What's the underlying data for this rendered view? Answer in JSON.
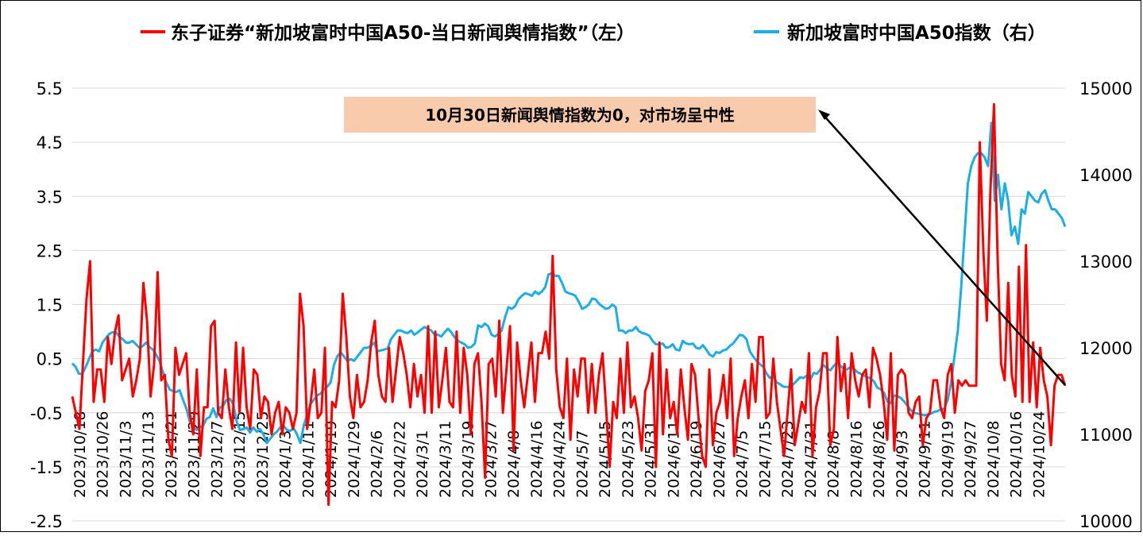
{
  "chart_data": {
    "type": "line",
    "legend": {
      "position": "top"
    },
    "grid": {
      "horizontal": true,
      "vertical": false
    },
    "series": [
      {
        "name": "东子证券“新加坡富时中国A50-当日新闻舆情指数”（左）",
        "axis": "left",
        "color": "#ff0000",
        "values": [
          -0.2,
          -0.5,
          -0.8,
          0.4,
          1.6,
          2.3,
          -0.3,
          0.3,
          0.3,
          -0.3,
          0.9,
          0.4,
          1.0,
          1.3,
          0.1,
          0.3,
          0.5,
          -0.2,
          0.1,
          0.5,
          1.9,
          1.2,
          -0.2,
          0.4,
          2.1,
          0.1,
          0.2,
          -1.0,
          -1.3,
          0.7,
          0.2,
          0.4,
          0.6,
          -0.5,
          -0.9,
          0.3,
          -1.3,
          -0.4,
          -0.4,
          1.1,
          1.2,
          -0.5,
          -0.6,
          0.3,
          -0.4,
          -0.8,
          0.8,
          -0.5,
          0.7,
          -0.4,
          -0.8,
          0.3,
          0.2,
          -0.6,
          -0.2,
          -0.3,
          -0.9,
          -0.5,
          -0.3,
          -0.9,
          -0.4,
          -0.5,
          -0.8,
          -0.5,
          1.7,
          1.1,
          -0.8,
          -0.3,
          0.3,
          -0.6,
          -0.5,
          0.7,
          -2.2,
          -0.3,
          -0.4,
          0.1,
          1.7,
          0.9,
          -0.2,
          -0.6,
          0.2,
          -0.4,
          -0.3,
          0.1,
          0.8,
          1.2,
          0.2,
          -0.2,
          -0.3,
          0.7,
          -0.3,
          0.3,
          0.9,
          0.6,
          0.2,
          -0.4,
          0.4,
          -0.2,
          0.2,
          -0.5,
          1.1,
          -0.5,
          1.0,
          -0.4,
          0.1,
          0.7,
          -0.3,
          -0.4,
          1.0,
          -0.5,
          0.7,
          0.2,
          -0.9,
          0.4,
          0.6,
          -0.3,
          -1.7,
          0.4,
          0.5,
          -0.2,
          1.2,
          -0.5,
          0.3,
          1.1,
          -1.2,
          0.8,
          0.1,
          -0.4,
          0.2,
          0.8,
          -0.3,
          0.6,
          0.6,
          1.0,
          0.5,
          2.4,
          0.3,
          -0.4,
          -0.6,
          0.5,
          -1.0,
          0.3,
          -0.2,
          0.5,
          0.5,
          -0.5,
          0.4,
          -0.5,
          0.2,
          0.6,
          -0.4,
          -1.5,
          -0.3,
          -0.6,
          0.5,
          -0.5,
          0.8,
          -0.4,
          -0.2,
          -0.6,
          -1.2,
          -0.1,
          0.1,
          0.6,
          -1.5,
          0.8,
          -0.9,
          0.3,
          -0.6,
          -0.3,
          -0.9,
          0.3,
          -0.4,
          -1.0,
          0.4,
          0.2,
          -0.6,
          -1.3,
          -1.5,
          0.3,
          -1.1,
          -0.5,
          -0.3,
          0.2,
          -0.6,
          0.5,
          -1.3,
          -0.6,
          -0.2,
          0.1,
          -0.6,
          0.4,
          -0.3,
          0.9,
          0.9,
          -0.6,
          -0.5,
          0.5,
          -0.3,
          -0.8,
          -1.3,
          -0.5,
          0.3,
          -1.1,
          -0.7,
          -0.3,
          -0.5,
          0.6,
          -1.3,
          -0.4,
          -0.1,
          0.6,
          0.6,
          -1.1,
          -0.8,
          0.9,
          -0.1,
          0.4,
          -0.6,
          0.6,
          0.1,
          -0.2,
          0.2,
          0.3,
          -0.4,
          0.7,
          0.5,
          0.2,
          -0.3,
          -1.0,
          0.6,
          -1.2,
          0.2,
          0.3,
          0.2,
          -0.5,
          -0.6,
          -0.3,
          -0.2,
          -1.1,
          -0.6,
          -0.5,
          0.1,
          0.1,
          -0.4,
          -0.6,
          0.2,
          0.4,
          -0.5,
          0.1,
          0.0,
          0.1,
          0.0,
          0.0,
          0.0,
          4.5,
          2.5,
          1.2,
          3.6,
          5.2,
          2.4,
          0.4,
          0.1,
          1.9,
          0.2,
          -0.2,
          2.2,
          -0.3,
          2.6,
          -0.3,
          0.8,
          -0.4,
          0.7,
          0.1,
          -0.2,
          -1.1,
          0.0,
          0.2,
          0.2,
          0.0
        ]
      },
      {
        "name": "新加坡富时中国A50指数（右）",
        "axis": "right",
        "color": "#1baee6",
        "values": [
          11820,
          11780,
          11700,
          11700,
          11780,
          11870,
          11960,
          11980,
          11960,
          12060,
          12110,
          12160,
          12180,
          12180,
          12130,
          12100,
          12060,
          12060,
          12080,
          12040,
          12000,
          12020,
          12060,
          12010,
          11980,
          11920,
          11850,
          11720,
          11600,
          11520,
          11500,
          11490,
          11510,
          11400,
          11300,
          11150,
          11100,
          11050,
          11080,
          11100,
          11180,
          11200,
          11300,
          11200,
          11310,
          11330,
          11400,
          11410,
          11350,
          11150,
          11050,
          11060,
          11080,
          11020,
          11080,
          11030,
          11060,
          11000,
          10900,
          10950,
          11000,
          11030,
          11080,
          11100,
          11050,
          11040,
          11070,
          11000,
          10900,
          11100,
          11230,
          11350,
          11400,
          11450,
          11470,
          11520,
          11550,
          11600,
          11800,
          11900,
          11950,
          11900,
          11850,
          11870,
          11850,
          11900,
          11950,
          12000,
          12000,
          12020,
          12060,
          11960,
          11970,
          11980,
          11990,
          12100,
          12150,
          12200,
          12200,
          12180,
          12170,
          12200,
          12150,
          12180,
          12210,
          12240,
          12220,
          12200,
          12150,
          12150,
          12130,
          12180,
          12220,
          12180,
          12120,
          12080,
          12060,
          12040,
          12000,
          12010,
          12050,
          12260,
          12240,
          12280,
          12250,
          12150,
          12130,
          12160,
          12200,
          12350,
          12470,
          12450,
          12480,
          12560,
          12600,
          12630,
          12620,
          12600,
          12650,
          12620,
          12650,
          12700,
          12850,
          12860,
          12830,
          12830,
          12750,
          12650,
          12630,
          12620,
          12600,
          12530,
          12450,
          12470,
          12500,
          12570,
          12560,
          12510,
          12480,
          12450,
          12460,
          12500,
          12470,
          12200,
          12200,
          12170,
          12200,
          12200,
          12240,
          12190,
          12170,
          12160,
          12140,
          12080,
          12040,
          12040,
          12050,
          12000,
          12010,
          12040,
          11980,
          11970,
          12080,
          12050,
          12040,
          12050,
          12000,
          11990,
          12030,
          11980,
          11920,
          11900,
          11950,
          11940,
          11970,
          11980,
          12020,
          12050,
          12100,
          12150,
          12140,
          12100,
          11960,
          11900,
          11850,
          11810,
          11780,
          11700,
          11650,
          11680,
          11600,
          11580,
          11550,
          11550,
          11540,
          11580,
          11620,
          11660,
          11650,
          11680,
          11630,
          11710,
          11700,
          11750,
          11800,
          11760,
          11740,
          11790,
          11830,
          11790,
          11760,
          11750,
          11780,
          11760,
          11720,
          11700,
          11680,
          11660,
          11650,
          11610,
          11540,
          11520,
          11480,
          11380,
          11360,
          11450,
          11440,
          11420,
          11380,
          11330,
          11280,
          11250,
          11240,
          11230,
          11220,
          11230,
          11240,
          11260,
          11270,
          11290,
          11300,
          11400,
          11600,
          11900,
          12200,
          12700,
          13300,
          13900,
          14100,
          14200,
          14250,
          14250,
          14200,
          14100,
          14600,
          13700,
          14000,
          13600,
          13900,
          13700,
          13300,
          13400,
          13200,
          13600,
          13550,
          13800,
          13750,
          13700,
          13680,
          13780,
          13820,
          13700,
          13600,
          13600,
          13550,
          13500,
          13400
        ]
      }
    ],
    "x_labels": [
      "2023/10/18",
      "2023/10/26",
      "2023/11/3",
      "2023/11/13",
      "2023/11/21",
      "2023/11/29",
      "2023/12/7",
      "2023/12/15",
      "2023/12/25",
      "2024/1/3",
      "2024/1/11",
      "2024/1/19",
      "2024/1/29",
      "2024/2/6",
      "2024/2/22",
      "2024/3/1",
      "2024/3/11",
      "2024/3/19",
      "2024/3/27",
      "2024/4/8",
      "2024/4/16",
      "2024/4/24",
      "2024/5/7",
      "2024/5/15",
      "2024/5/23",
      "2024/5/31",
      "2024/6/11",
      "2024/6/19",
      "2024/6/27",
      "2024/7/5",
      "2024/7/15",
      "2024/7/23",
      "2024/7/31",
      "2024/8/8",
      "2024/8/16",
      "2024/8/26",
      "2024/9/3",
      "2024/9/11",
      "2024/9/19",
      "2024/9/27",
      "2024/10/8",
      "2024/10/16",
      "2024/10/24"
    ],
    "y_left": {
      "min": -2.5,
      "max": 5.5,
      "ticks": [
        "-2.5",
        "-1.5",
        "-0.5",
        "0.5",
        "1.5",
        "2.5",
        "3.5",
        "4.5",
        "5.5"
      ]
    },
    "y_right": {
      "min": 10000,
      "max": 15000,
      "ticks": [
        "10000",
        "11000",
        "12000",
        "13000",
        "14000",
        "15000"
      ]
    },
    "annotation": {
      "text": "10月30日新闻舆情指数为0，对市场呈中性",
      "box_color": "#f8cbad"
    }
  }
}
